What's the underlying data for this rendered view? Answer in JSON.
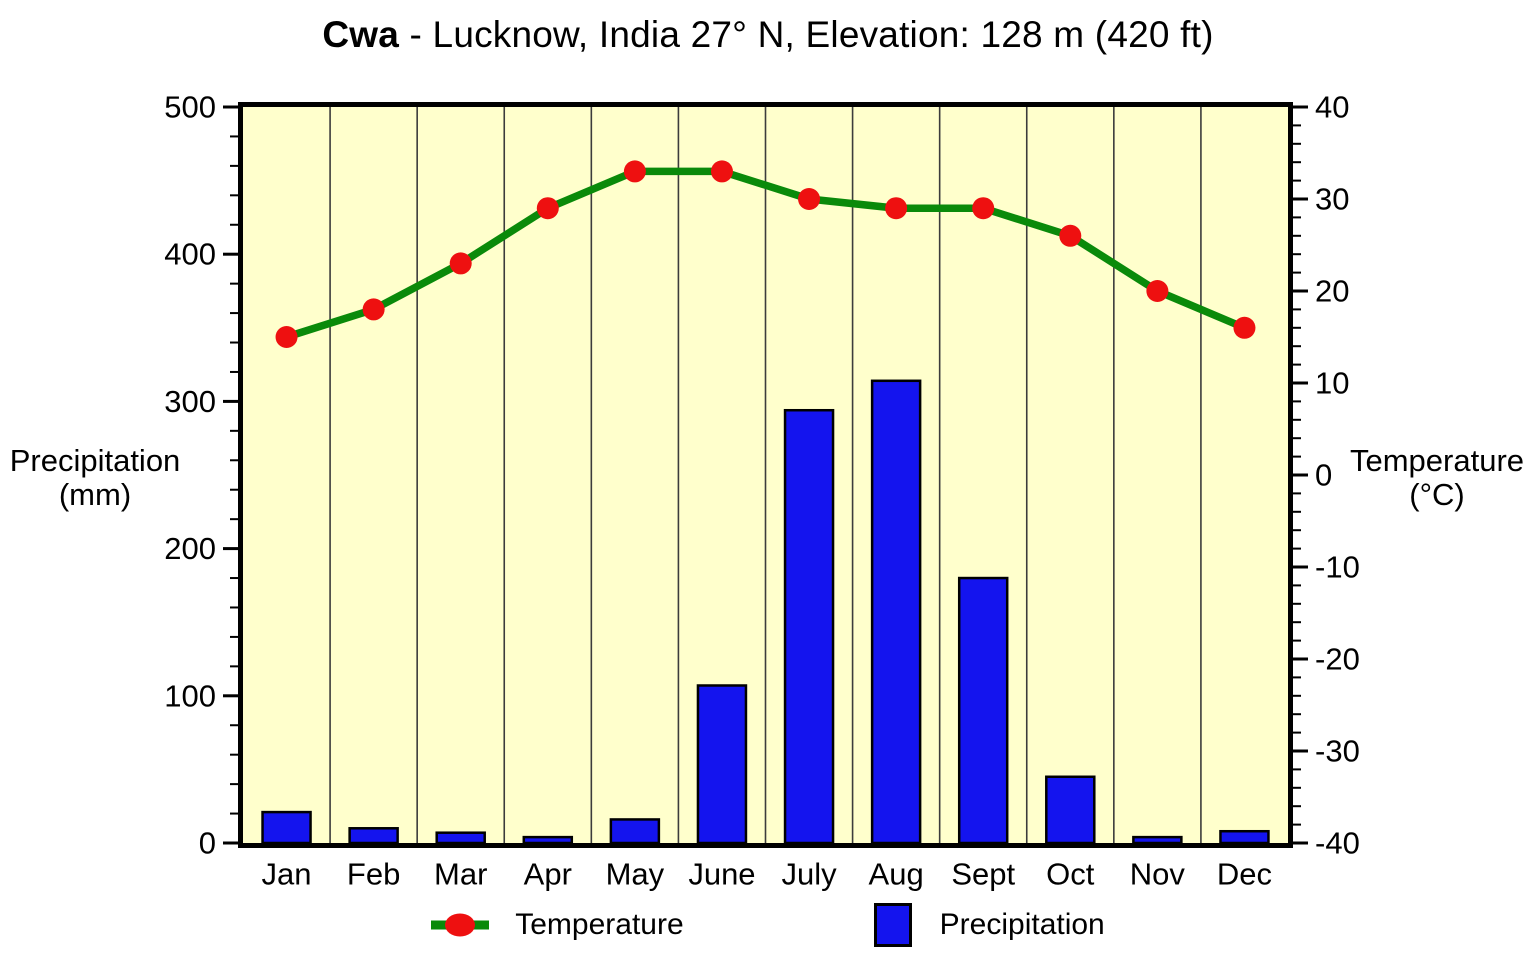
{
  "title": {
    "koppen": "Cwa",
    "rest": " - Lucknow, India 27° N, Elevation: 128 m (420 ft)"
  },
  "axes": {
    "left_title_line1": "Precipitation",
    "left_title_line2": "(mm)",
    "right_title_line1": "Temperature",
    "right_title_line2": "(°C)"
  },
  "legend": {
    "temperature": "Temperature",
    "precipitation": "Precipitation"
  },
  "colors": {
    "plot_background": "#ffffcc",
    "bar_fill": "#1414ee",
    "bar_border": "#000000",
    "line_green": "#0a8a0a",
    "point_red": "#ee1010",
    "gridline": "#3c3c3c",
    "frame": "#000000"
  },
  "chart_data": {
    "type": "bar",
    "subtype": "climograph (bar + line, dual axis)",
    "title": "Cwa - Lucknow, India 27° N, Elevation: 128 m (420 ft)",
    "categories": [
      "Jan",
      "Feb",
      "Mar",
      "Apr",
      "May",
      "June",
      "July",
      "Aug",
      "Sept",
      "Oct",
      "Nov",
      "Dec"
    ],
    "series": [
      {
        "name": "Temperature",
        "type": "line",
        "axis": "right",
        "unit": "°C",
        "values": [
          15,
          18,
          23,
          29,
          33,
          33,
          30,
          29,
          29,
          26,
          20,
          16
        ]
      },
      {
        "name": "Precipitation",
        "type": "bar",
        "axis": "left",
        "unit": "mm",
        "values": [
          21,
          10,
          7,
          4,
          16,
          107,
          294,
          314,
          180,
          45,
          4,
          8
        ]
      }
    ],
    "left_axis": {
      "label": "Precipitation (mm)",
      "min": 0,
      "max": 500,
      "major_ticks": [
        0,
        100,
        200,
        300,
        400,
        500
      ],
      "minor_step": 20
    },
    "right_axis": {
      "label": "Temperature (°C)",
      "min": -40,
      "max": 40,
      "major_ticks": [
        -40,
        -30,
        -20,
        -10,
        0,
        10,
        20,
        30,
        40
      ],
      "minor_step": 2
    },
    "grid": "vertical month separators only",
    "legend_position": "bottom"
  }
}
